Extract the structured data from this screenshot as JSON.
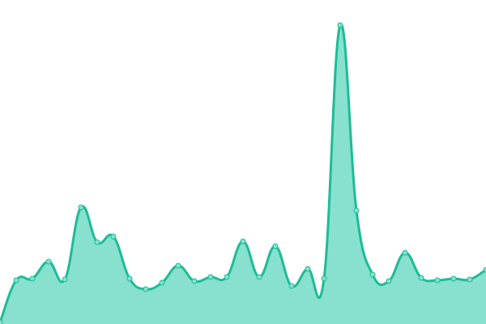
{
  "chart_data": {
    "type": "area",
    "title": "",
    "xlabel": "",
    "ylabel": "",
    "x": [
      0,
      1,
      2,
      3,
      4,
      5,
      6,
      7,
      8,
      9,
      10,
      11,
      12,
      13,
      14,
      15,
      16,
      17,
      18,
      19,
      20,
      21,
      22,
      23,
      24,
      25,
      26,
      27,
      28,
      29,
      30
    ],
    "values": [
      2,
      54,
      56,
      77,
      55,
      144,
      101,
      108,
      56,
      43,
      51,
      72,
      53,
      58,
      58,
      102,
      58,
      96,
      47,
      68,
      56,
      369,
      140,
      61,
      53,
      88,
      57,
      54,
      56,
      55,
      67
    ],
    "ylim": [
      0,
      400
    ],
    "grid": false,
    "axes_visible": false,
    "colors": {
      "fill": "#88e0cf",
      "stroke": "#1dbc94",
      "point_fill": "#88e0cf"
    }
  }
}
